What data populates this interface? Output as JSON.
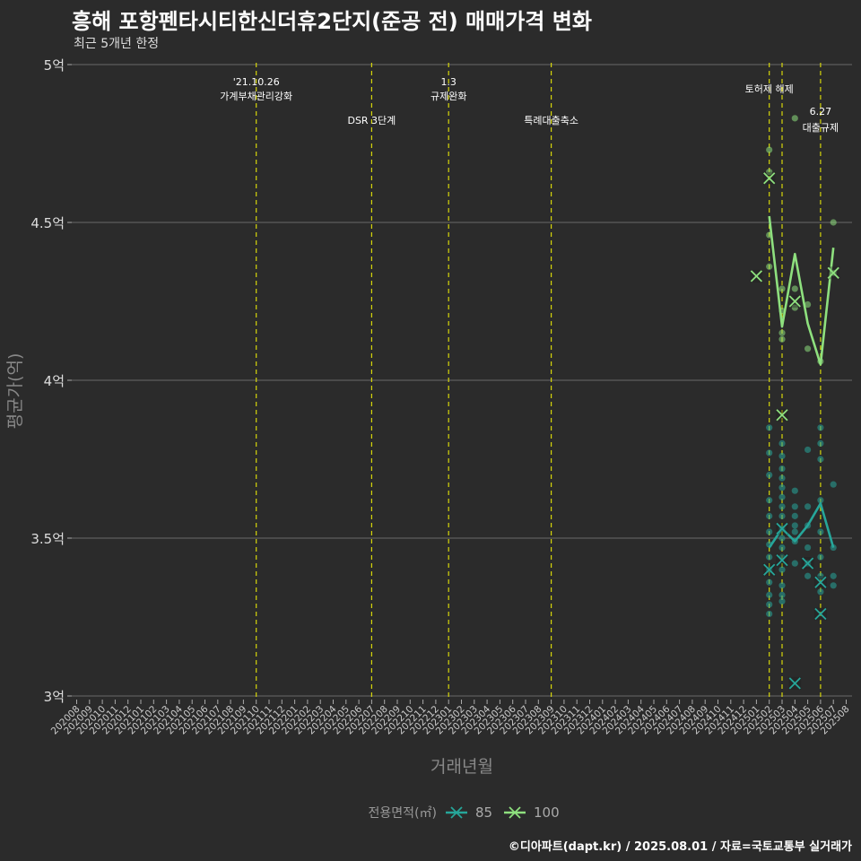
{
  "chart_data": {
    "type": "scatter",
    "title": "흥해 포항펜타시티한신더휴2단지(준공 전) 매매가격 변화",
    "subtitle": "최근 5개년 한정",
    "xlabel": "거래년월",
    "ylabel": "평균가(억)",
    "caption": "©디아파트(dapt.kr) / 2025.08.01 / 자료=국토교통부 실거래가",
    "ylim": [
      2.98,
      5.0
    ],
    "yticks": [
      {
        "value": 3.0,
        "label": "3억"
      },
      {
        "value": 3.5,
        "label": "3.5억"
      },
      {
        "value": 4.0,
        "label": "4억"
      },
      {
        "value": 4.5,
        "label": "4.5억"
      },
      {
        "value": 5.0,
        "label": "5억"
      }
    ],
    "categories": [
      "202008",
      "202009",
      "202010",
      "202011",
      "202012",
      "202101",
      "202102",
      "202103",
      "202104",
      "202105",
      "202106",
      "202107",
      "202108",
      "202109",
      "202110",
      "202111",
      "202112",
      "202201",
      "202202",
      "202203",
      "202204",
      "202205",
      "202206",
      "202207",
      "202208",
      "202209",
      "202210",
      "202211",
      "202212",
      "202301",
      "202302",
      "202303",
      "202304",
      "202305",
      "202306",
      "202307",
      "202308",
      "202309",
      "202310",
      "202311",
      "202312",
      "202401",
      "202402",
      "202403",
      "202404",
      "202405",
      "202406",
      "202407",
      "202408",
      "202409",
      "202410",
      "202411",
      "202412",
      "202501",
      "202502",
      "202503",
      "202504",
      "202505",
      "202506",
      "202507",
      "202508"
    ],
    "events": [
      {
        "x": "202110",
        "line1": "'21.10.26",
        "line2": "가계부채관리강화",
        "level": "high"
      },
      {
        "x": "202207",
        "line1": "DSR 3단계",
        "line2": "",
        "level": "low"
      },
      {
        "x": "202301",
        "line1": "1.3",
        "line2": "규제완화",
        "level": "high"
      },
      {
        "x": "202309",
        "line1": "특례대출축소",
        "line2": "",
        "level": "low"
      },
      {
        "x": "202502",
        "line1": "토허제 해제",
        "line2": "",
        "level": "mid"
      },
      {
        "x": "202503",
        "line1": "",
        "line2": "",
        "level": "none"
      },
      {
        "x": "202506",
        "line1": "6.27",
        "line2": "대출규제",
        "level": "right"
      }
    ],
    "legend": {
      "title": "전용면적(㎡)",
      "position": "bottom"
    },
    "series": [
      {
        "name": "85",
        "color": "#26a69a",
        "mean_line": [
          {
            "x": "202502",
            "y": 3.47
          },
          {
            "x": "202503",
            "y": 3.53
          },
          {
            "x": "202504",
            "y": 3.49
          },
          {
            "x": "202505",
            "y": 3.54
          },
          {
            "x": "202506",
            "y": 3.61
          },
          {
            "x": "202507",
            "y": 3.47
          }
        ],
        "points": [
          {
            "x": "202502",
            "y": 3.85
          },
          {
            "x": "202502",
            "y": 3.77
          },
          {
            "x": "202502",
            "y": 3.7
          },
          {
            "x": "202502",
            "y": 3.62
          },
          {
            "x": "202502",
            "y": 3.57
          },
          {
            "x": "202502",
            "y": 3.52
          },
          {
            "x": "202502",
            "y": 3.48
          },
          {
            "x": "202502",
            "y": 3.44
          },
          {
            "x": "202502",
            "y": 3.4
          },
          {
            "x": "202502",
            "y": 3.36
          },
          {
            "x": "202502",
            "y": 3.32
          },
          {
            "x": "202502",
            "y": 3.29
          },
          {
            "x": "202502",
            "y": 3.26
          },
          {
            "x": "202503",
            "y": 3.8
          },
          {
            "x": "202503",
            "y": 3.76
          },
          {
            "x": "202503",
            "y": 3.72
          },
          {
            "x": "202503",
            "y": 3.69
          },
          {
            "x": "202503",
            "y": 3.66
          },
          {
            "x": "202503",
            "y": 3.63
          },
          {
            "x": "202503",
            "y": 3.6
          },
          {
            "x": "202503",
            "y": 3.57
          },
          {
            "x": "202503",
            "y": 3.53
          },
          {
            "x": "202503",
            "y": 3.5
          },
          {
            "x": "202503",
            "y": 3.47
          },
          {
            "x": "202503",
            "y": 3.44
          },
          {
            "x": "202503",
            "y": 3.4
          },
          {
            "x": "202503",
            "y": 3.35
          },
          {
            "x": "202503",
            "y": 3.32
          },
          {
            "x": "202503",
            "y": 3.3
          },
          {
            "x": "202504",
            "y": 3.65
          },
          {
            "x": "202504",
            "y": 3.6
          },
          {
            "x": "202504",
            "y": 3.57
          },
          {
            "x": "202504",
            "y": 3.54
          },
          {
            "x": "202504",
            "y": 3.52
          },
          {
            "x": "202504",
            "y": 3.49
          },
          {
            "x": "202504",
            "y": 3.42
          },
          {
            "x": "202505",
            "y": 3.78
          },
          {
            "x": "202505",
            "y": 3.6
          },
          {
            "x": "202505",
            "y": 3.54
          },
          {
            "x": "202505",
            "y": 3.47
          },
          {
            "x": "202505",
            "y": 3.42
          },
          {
            "x": "202505",
            "y": 3.38
          },
          {
            "x": "202506",
            "y": 3.85
          },
          {
            "x": "202506",
            "y": 3.8
          },
          {
            "x": "202506",
            "y": 3.75
          },
          {
            "x": "202506",
            "y": 3.62
          },
          {
            "x": "202506",
            "y": 3.52
          },
          {
            "x": "202506",
            "y": 3.44
          },
          {
            "x": "202506",
            "y": 3.38
          },
          {
            "x": "202506",
            "y": 3.33
          },
          {
            "x": "202507",
            "y": 3.67
          },
          {
            "x": "202507",
            "y": 3.47
          },
          {
            "x": "202507",
            "y": 3.38
          },
          {
            "x": "202507",
            "y": 3.35
          }
        ],
        "extremes": [
          {
            "x": "202502",
            "y": 3.4
          },
          {
            "x": "202503",
            "y": 3.43
          },
          {
            "x": "202503",
            "y": 3.53
          },
          {
            "x": "202504",
            "y": 3.04
          },
          {
            "x": "202505",
            "y": 3.42
          },
          {
            "x": "202506",
            "y": 3.36
          },
          {
            "x": "202506",
            "y": 3.26
          }
        ]
      },
      {
        "name": "100",
        "color": "#8ee07e",
        "mean_line": [
          {
            "x": "202502",
            "y": 4.52
          },
          {
            "x": "202503",
            "y": 4.17
          },
          {
            "x": "202504",
            "y": 4.4
          },
          {
            "x": "202505",
            "y": 4.18
          },
          {
            "x": "202506",
            "y": 4.05
          },
          {
            "x": "202507",
            "y": 4.42
          }
        ],
        "points": [
          {
            "x": "202502",
            "y": 4.73
          },
          {
            "x": "202502",
            "y": 4.66
          },
          {
            "x": "202502",
            "y": 4.46
          },
          {
            "x": "202502",
            "y": 4.36
          },
          {
            "x": "202503",
            "y": 4.29
          },
          {
            "x": "202503",
            "y": 4.22
          },
          {
            "x": "202503",
            "y": 4.15
          },
          {
            "x": "202503",
            "y": 4.13
          },
          {
            "x": "202504",
            "y": 4.83
          },
          {
            "x": "202504",
            "y": 4.29
          },
          {
            "x": "202504",
            "y": 4.23
          },
          {
            "x": "202505",
            "y": 4.24
          },
          {
            "x": "202505",
            "y": 4.1
          },
          {
            "x": "202506",
            "y": 4.06
          },
          {
            "x": "202507",
            "y": 4.5
          },
          {
            "x": "202507",
            "y": 4.34
          }
        ],
        "extremes": [
          {
            "x": "202501",
            "y": 4.33
          },
          {
            "x": "202502",
            "y": 4.64
          },
          {
            "x": "202503",
            "y": 3.89
          },
          {
            "x": "202504",
            "y": 4.25
          },
          {
            "x": "202507",
            "y": 4.34
          }
        ]
      }
    ]
  }
}
